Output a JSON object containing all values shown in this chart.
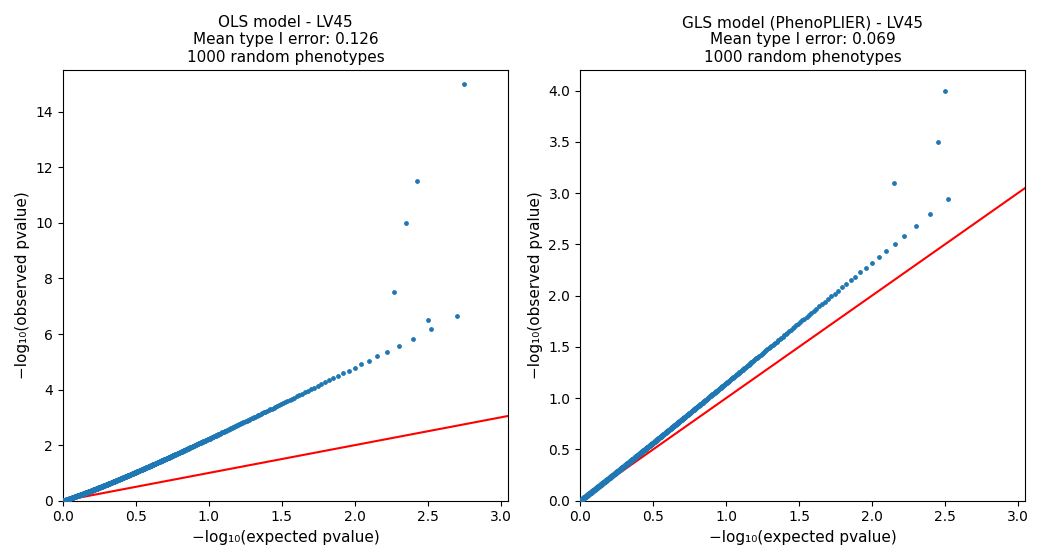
{
  "left_title": "OLS model - LV45\nMean type I error: 0.126\n1000 random phenotypes",
  "right_title": "GLS model (PhenoPLIER) - LV45\nMean type I error: 0.069\n1000 random phenotypes",
  "xlabel": "−log₁₀(expected pvalue)",
  "ylabel": "−log₁₀(observed pvalue)",
  "left_xlim": [
    0,
    3.05
  ],
  "left_ylim": [
    0,
    15.5
  ],
  "right_xlim": [
    0,
    3.05
  ],
  "right_ylim": [
    0,
    4.2
  ],
  "dot_color": "#1f77b4",
  "line_color": "red",
  "dot_size": 6,
  "title_fontsize": 11,
  "axis_fontsize": 11
}
